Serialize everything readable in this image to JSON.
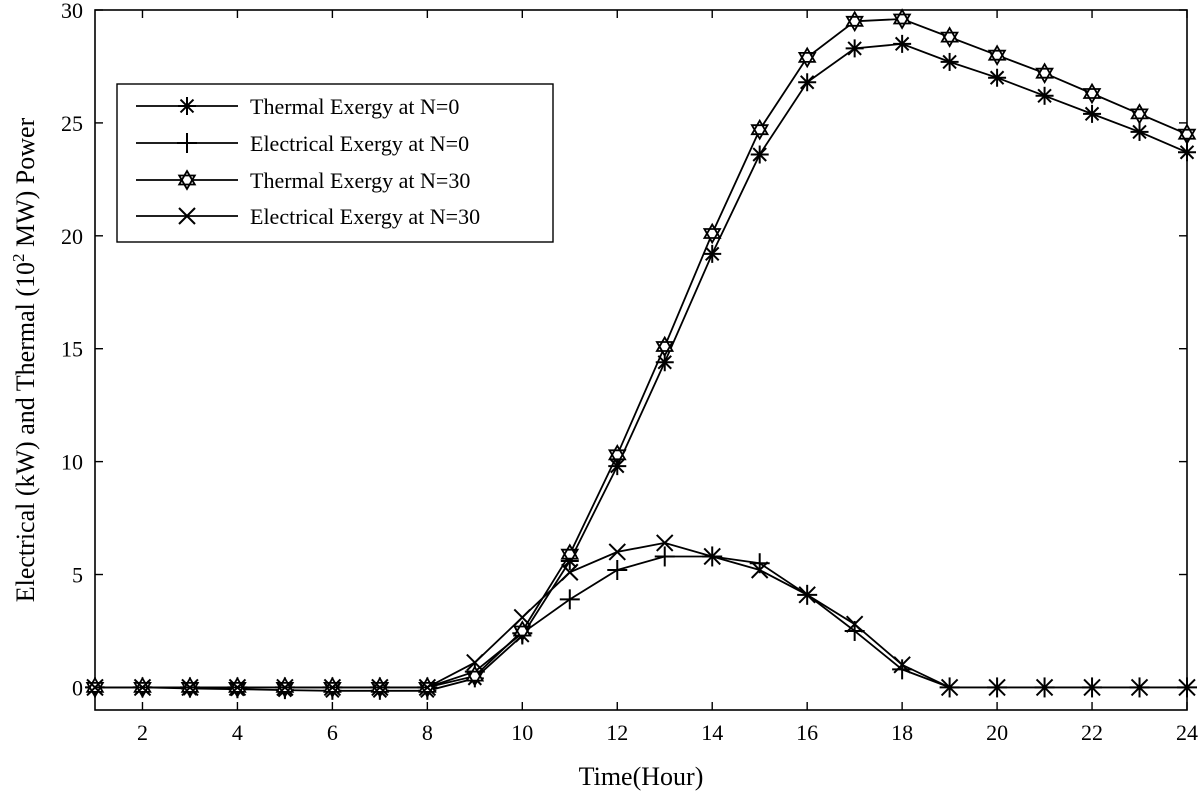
{
  "chart_data": {
    "type": "line",
    "title": "",
    "xlabel": "Time(Hour)",
    "ylabel_parts": {
      "before": "Electrical (kW) and Thermal (10",
      "sup": "2",
      "after": " MW) Power"
    },
    "xlim": [
      1,
      24
    ],
    "ylim": [
      -1,
      30
    ],
    "xticks": [
      2,
      4,
      6,
      8,
      10,
      12,
      14,
      16,
      18,
      20,
      22,
      24
    ],
    "yticks": [
      0,
      5,
      10,
      15,
      20,
      25,
      30
    ],
    "grid": false,
    "legend_position": "top-left",
    "x": [
      1,
      2,
      3,
      4,
      5,
      6,
      7,
      8,
      9,
      10,
      11,
      12,
      13,
      14,
      15,
      16,
      17,
      18,
      19,
      20,
      21,
      22,
      23,
      24
    ],
    "series": [
      {
        "name": "Thermal Exergy at N=0",
        "marker": "asterisk",
        "values": [
          0,
          0,
          -0.05,
          -0.08,
          -0.12,
          -0.15,
          -0.15,
          -0.15,
          0.4,
          2.3,
          5.6,
          9.8,
          14.4,
          19.2,
          23.6,
          26.8,
          28.3,
          28.5,
          27.7,
          27.0,
          26.2,
          25.4,
          24.6,
          23.7
        ]
      },
      {
        "name": "Electrical Exergy at N=0",
        "marker": "plus",
        "values": [
          0,
          0,
          0,
          0,
          0,
          0,
          0,
          0,
          0.7,
          2.4,
          3.9,
          5.2,
          5.8,
          5.8,
          5.5,
          4.1,
          2.5,
          0.8,
          0,
          0,
          0,
          0,
          0,
          0
        ]
      },
      {
        "name": "Thermal Exergy at N=30",
        "marker": "star",
        "values": [
          0,
          0,
          0,
          0,
          0,
          0,
          0,
          0,
          0.5,
          2.5,
          5.9,
          10.3,
          15.1,
          20.1,
          24.7,
          27.9,
          29.5,
          29.6,
          28.8,
          28.0,
          27.2,
          26.3,
          25.4,
          24.5
        ]
      },
      {
        "name": "Electrical Exergy at N=30",
        "marker": "cross",
        "values": [
          0,
          0,
          0,
          0,
          0,
          0,
          0,
          0,
          1.1,
          3.1,
          5.1,
          6.0,
          6.4,
          5.8,
          5.2,
          4.1,
          2.8,
          1.0,
          0,
          0,
          0,
          0,
          0,
          0
        ]
      }
    ]
  }
}
